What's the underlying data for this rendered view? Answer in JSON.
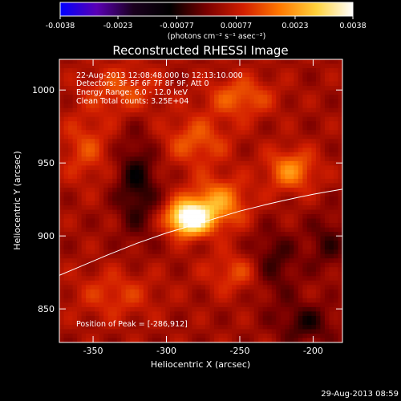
{
  "colorbar": {
    "tick_labels": [
      "-0.0038",
      "-0.0023",
      "-0.00077",
      "0.00077",
      "0.0023",
      "0.0038"
    ],
    "range": [
      -0.0038,
      0.0038
    ],
    "unit_label": "(photons cm⁻² s⁻¹ asec⁻²)",
    "colormap": [
      "#0000ff",
      "#5a00b4",
      "#1a001e",
      "#000000",
      "#7a0000",
      "#d21e00",
      "#ff7800",
      "#ffd23c",
      "#ffffff"
    ]
  },
  "chart_data": {
    "type": "heatmap",
    "title": "Reconstructed RHESSI Image",
    "xlabel": "Heliocentric X (arcsec)",
    "ylabel": "Heliocentric Y (arcsec)",
    "xlim": [
      -373,
      -180
    ],
    "ylim": [
      827,
      1021
    ],
    "x_ticks": [
      -350,
      -300,
      -250,
      -200
    ],
    "y_ticks": [
      850,
      900,
      950,
      1000
    ],
    "annotations": {
      "time_range": "22-Aug-2013 12:08:48.000 to 12:13:10.000",
      "detectors": "Detectors: 3F 5F 6F 7F 8F 9F, Att 0",
      "energy_range": "Energy Range: 6.0 - 12.0 keV",
      "clean_counts": "Clean    Total counts: 3.25E+04",
      "peak": "Position of Peak = [-286,912]"
    },
    "peak": {
      "x": -286,
      "y": 912
    },
    "limb": {
      "x": [
        -373,
        -360,
        -340,
        -320,
        -300,
        -290,
        -280,
        -270,
        -260,
        -250,
        -240,
        -230,
        -220,
        -210,
        -200,
        -190,
        -180
      ],
      "y": [
        873,
        878.5,
        887,
        895,
        902,
        905,
        908,
        911,
        914,
        917,
        919.5,
        922,
        924.3,
        926.5,
        928.5,
        930.3,
        932
      ]
    },
    "sources": [
      {
        "x": -285,
        "y": 912,
        "amp": 0.0038,
        "sx": 10,
        "sy": 8
      },
      {
        "x": -265,
        "y": 922,
        "amp": 0.0018,
        "sx": 14,
        "sy": 12
      },
      {
        "x": -215,
        "y": 945,
        "amp": 0.0016,
        "sx": 12,
        "sy": 10
      },
      {
        "x": -250,
        "y": 995,
        "amp": 0.0012,
        "sx": 16,
        "sy": 10
      },
      {
        "x": -280,
        "y": 965,
        "amp": 0.0011,
        "sx": 16,
        "sy": 12
      },
      {
        "x": -330,
        "y": 1000,
        "amp": 0.001,
        "sx": 18,
        "sy": 12
      },
      {
        "x": -355,
        "y": 960,
        "amp": 0.0009,
        "sx": 12,
        "sy": 16
      },
      {
        "x": -250,
        "y": 875,
        "amp": 0.001,
        "sx": 16,
        "sy": 10
      },
      {
        "x": -335,
        "y": 860,
        "amp": 0.0008,
        "sx": 20,
        "sy": 12
      },
      {
        "x": -320,
        "y": 935,
        "amp": -0.0012,
        "sx": 10,
        "sy": 24
      },
      {
        "x": -228,
        "y": 880,
        "amp": -0.0011,
        "sx": 12,
        "sy": 16
      },
      {
        "x": -205,
        "y": 840,
        "amp": -0.001,
        "sx": 14,
        "sy": 10
      },
      {
        "x": -190,
        "y": 895,
        "amp": -0.0008,
        "sx": 10,
        "sy": 14
      }
    ]
  },
  "footer": {
    "timestamp": "29-Aug-2013 08:59"
  }
}
